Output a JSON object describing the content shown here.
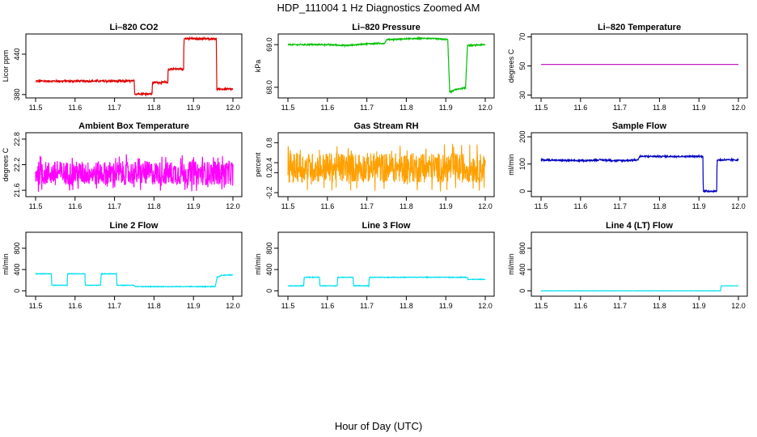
{
  "page": {
    "title": "HDP_111004  1 Hz Diagnostics Zoomed AM",
    "xlabel": "Hour of Day (UTC)"
  },
  "chart_data": [
    {
      "type": "line",
      "title": "Li–820 CO2",
      "ylabel": "Licor ppm",
      "color": "#e00000",
      "xlim": [
        11.5,
        12.0
      ],
      "xticks": [
        "11.5",
        "11.6",
        "11.7",
        "11.8",
        "11.9",
        "12.0"
      ],
      "ylim": [
        375,
        470
      ],
      "yticks": [
        "380",
        "440"
      ],
      "ytick_values": [
        380,
        440
      ],
      "points": [
        [
          11.5,
          400
        ],
        [
          11.75,
          400
        ],
        [
          11.751,
          381
        ],
        [
          11.795,
          381
        ],
        [
          11.796,
          398
        ],
        [
          11.835,
          398
        ],
        [
          11.836,
          418
        ],
        [
          11.875,
          418
        ],
        [
          11.876,
          463
        ],
        [
          11.958,
          463
        ],
        [
          11.959,
          388
        ],
        [
          12.0,
          388
        ]
      ],
      "noise": 1.2
    },
    {
      "type": "line",
      "title": "Li–820 Pressure",
      "ylabel": "kPa",
      "color": "#00c000",
      "xlim": [
        11.5,
        12.0
      ],
      "xticks": [
        "11.5",
        "11.6",
        "11.7",
        "11.8",
        "11.9",
        "12.0"
      ],
      "ylim": [
        67.75,
        69.25
      ],
      "yticks": [
        "68.0",
        "69.0"
      ],
      "ytick_values": [
        68.0,
        69.0
      ],
      "points": [
        [
          11.5,
          69.0
        ],
        [
          11.6,
          69.0
        ],
        [
          11.65,
          68.98
        ],
        [
          11.7,
          69.02
        ],
        [
          11.745,
          69.03
        ],
        [
          11.75,
          69.12
        ],
        [
          11.85,
          69.15
        ],
        [
          11.905,
          69.12
        ],
        [
          11.91,
          67.88
        ],
        [
          11.925,
          67.95
        ],
        [
          11.95,
          67.98
        ],
        [
          11.955,
          68.98
        ],
        [
          12.0,
          69.0
        ]
      ],
      "noise": 0.012
    },
    {
      "type": "line",
      "title": "Li–820 Temperature",
      "ylabel": "degrees C",
      "color": "#c000c0",
      "xlim": [
        11.5,
        12.0
      ],
      "xticks": [
        "11.5",
        "11.6",
        "11.7",
        "11.8",
        "11.9",
        "12.0"
      ],
      "ylim": [
        28,
        72
      ],
      "yticks": [
        "30",
        "50",
        "70"
      ],
      "ytick_values": [
        30,
        50,
        70
      ],
      "points": [
        [
          11.5,
          51
        ],
        [
          12.0,
          51
        ]
      ],
      "noise": 0
    },
    {
      "type": "line",
      "title": "Ambient Box Temperature",
      "ylabel": "degrees C",
      "color": "#ff00ff",
      "xlim": [
        11.5,
        12.0
      ],
      "xticks": [
        "11.5",
        "11.6",
        "11.7",
        "11.8",
        "11.9",
        "12.0"
      ],
      "ylim": [
        21.45,
        22.95
      ],
      "yticks": [
        "21.6",
        "22.2",
        "22.8"
      ],
      "ytick_values": [
        21.6,
        22.2,
        22.8
      ],
      "points": [
        [
          11.5,
          22.0
        ],
        [
          12.0,
          22.0
        ]
      ],
      "noise": 0.28
    },
    {
      "type": "line",
      "title": "Gas Stream RH",
      "ylabel": "percent",
      "color": "#ffa000",
      "xlim": [
        11.5,
        12.0
      ],
      "xticks": [
        "11.5",
        "11.6",
        "11.7",
        "11.8",
        "11.9",
        "12.0"
      ],
      "ylim": [
        -0.28,
        1.0
      ],
      "yticks": [
        "-0.2",
        "0.2",
        "0.4",
        "0.8"
      ],
      "ytick_values": [
        -0.2,
        0.2,
        0.4,
        0.8
      ],
      "points": [
        [
          11.5,
          0.3
        ],
        [
          12.0,
          0.3
        ]
      ],
      "noise": 0.3
    },
    {
      "type": "line",
      "title": "Sample Flow",
      "ylabel": "ml/min",
      "color": "#0000c0",
      "xlim": [
        11.5,
        12.0
      ],
      "xticks": [
        "11.5",
        "11.6",
        "11.7",
        "11.8",
        "11.9",
        "12.0"
      ],
      "ylim": [
        -20,
        215
      ],
      "yticks": [
        "0",
        "100",
        "200"
      ],
      "ytick_values": [
        0,
        100,
        200
      ],
      "points": [
        [
          11.5,
          115
        ],
        [
          11.6,
          112
        ],
        [
          11.65,
          115
        ],
        [
          11.7,
          112
        ],
        [
          11.745,
          115
        ],
        [
          11.75,
          128
        ],
        [
          11.91,
          128
        ],
        [
          11.911,
          0
        ],
        [
          11.945,
          0
        ],
        [
          11.946,
          115
        ],
        [
          12.0,
          115
        ]
      ],
      "noise": 2.5
    },
    {
      "type": "line",
      "title": "Line 2 Flow",
      "ylabel": "ml/min",
      "color": "#00e0f0",
      "xlim": [
        11.5,
        12.0
      ],
      "xticks": [
        "11.5",
        "11.6",
        "11.7",
        "11.8",
        "11.9",
        "12.0"
      ],
      "ylim": [
        -100,
        1100
      ],
      "yticks": [
        "0",
        "400",
        "800"
      ],
      "ytick_values": [
        0,
        400,
        800
      ],
      "points": [
        [
          11.5,
          320
        ],
        [
          11.54,
          320
        ],
        [
          11.541,
          105
        ],
        [
          11.58,
          105
        ],
        [
          11.581,
          320
        ],
        [
          11.625,
          320
        ],
        [
          11.626,
          105
        ],
        [
          11.665,
          105
        ],
        [
          11.666,
          320
        ],
        [
          11.705,
          320
        ],
        [
          11.706,
          105
        ],
        [
          11.75,
          105
        ],
        [
          11.751,
          80
        ],
        [
          11.955,
          80
        ],
        [
          11.96,
          250
        ],
        [
          11.97,
          290
        ],
        [
          12.0,
          300
        ]
      ],
      "noise": 5
    },
    {
      "type": "line",
      "title": "Line 3 Flow",
      "ylabel": "ml/min",
      "color": "#00e0f0",
      "xlim": [
        11.5,
        12.0
      ],
      "xticks": [
        "11.5",
        "11.6",
        "11.7",
        "11.8",
        "11.9",
        "12.0"
      ],
      "ylim": [
        -100,
        1100
      ],
      "yticks": [
        "0",
        "400",
        "800"
      ],
      "ytick_values": [
        0,
        400,
        800
      ],
      "points": [
        [
          11.5,
          95
        ],
        [
          11.54,
          95
        ],
        [
          11.541,
          255
        ],
        [
          11.58,
          255
        ],
        [
          11.581,
          95
        ],
        [
          11.625,
          95
        ],
        [
          11.626,
          255
        ],
        [
          11.665,
          255
        ],
        [
          11.666,
          95
        ],
        [
          11.705,
          95
        ],
        [
          11.706,
          255
        ],
        [
          11.955,
          255
        ],
        [
          11.956,
          215
        ],
        [
          12.0,
          215
        ]
      ],
      "noise": 5
    },
    {
      "type": "line",
      "title": "Line 4 (LT) Flow",
      "ylabel": "ml/min",
      "color": "#00e0f0",
      "xlim": [
        11.5,
        12.0
      ],
      "xticks": [
        "11.5",
        "11.6",
        "11.7",
        "11.8",
        "11.9",
        "12.0"
      ],
      "ylim": [
        -100,
        1100
      ],
      "yticks": [
        "0",
        "400",
        "800"
      ],
      "ytick_values": [
        0,
        400,
        800
      ],
      "points": [
        [
          11.5,
          0
        ],
        [
          11.955,
          0
        ],
        [
          11.956,
          95
        ],
        [
          12.0,
          95
        ]
      ],
      "noise": 2
    }
  ]
}
